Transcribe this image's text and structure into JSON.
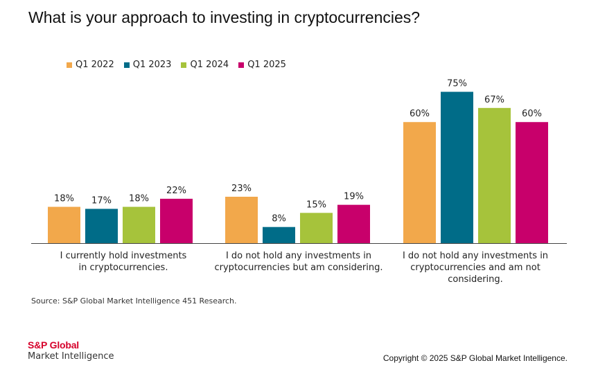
{
  "title": "What is your approach to investing in cryptocurrencies?",
  "source": "Source: S&P Global Market Intelligence 451 Research.",
  "logo": {
    "line1": "S&P Global",
    "line2": "Market Intelligence"
  },
  "copyright": "Copyright © 2025 S&P Global Market Intelligence.",
  "colors": [
    "#f2a84b",
    "#006c88",
    "#a6c33b",
    "#c8006b"
  ],
  "chart_data": {
    "type": "bar",
    "title": "What is your approach to investing in cryptocurrencies?",
    "categories": [
      [
        "I currently hold investments",
        "in cryptocurrencies."
      ],
      [
        "I do not hold any investments in",
        "cryptocurrencies but am considering."
      ],
      [
        "I do not hold any investments in",
        "cryptocurrencies and am not",
        "considering."
      ]
    ],
    "series": [
      {
        "name": "Q1 2022",
        "values": [
          18,
          23,
          60
        ],
        "labels": [
          "18%",
          "23%",
          "60%"
        ]
      },
      {
        "name": "Q1 2023",
        "values": [
          17,
          8,
          75
        ],
        "labels": [
          "17%",
          "8%",
          "75%"
        ]
      },
      {
        "name": "Q1 2024",
        "values": [
          18,
          15,
          67
        ],
        "labels": [
          "18%",
          "15%",
          "67%"
        ]
      },
      {
        "name": "Q1 2025",
        "values": [
          22,
          19,
          60
        ],
        "labels": [
          "22%",
          "19%",
          "60%"
        ]
      }
    ],
    "ylim": [
      0,
      100
    ],
    "grid": false,
    "legend_position": "top-left"
  }
}
